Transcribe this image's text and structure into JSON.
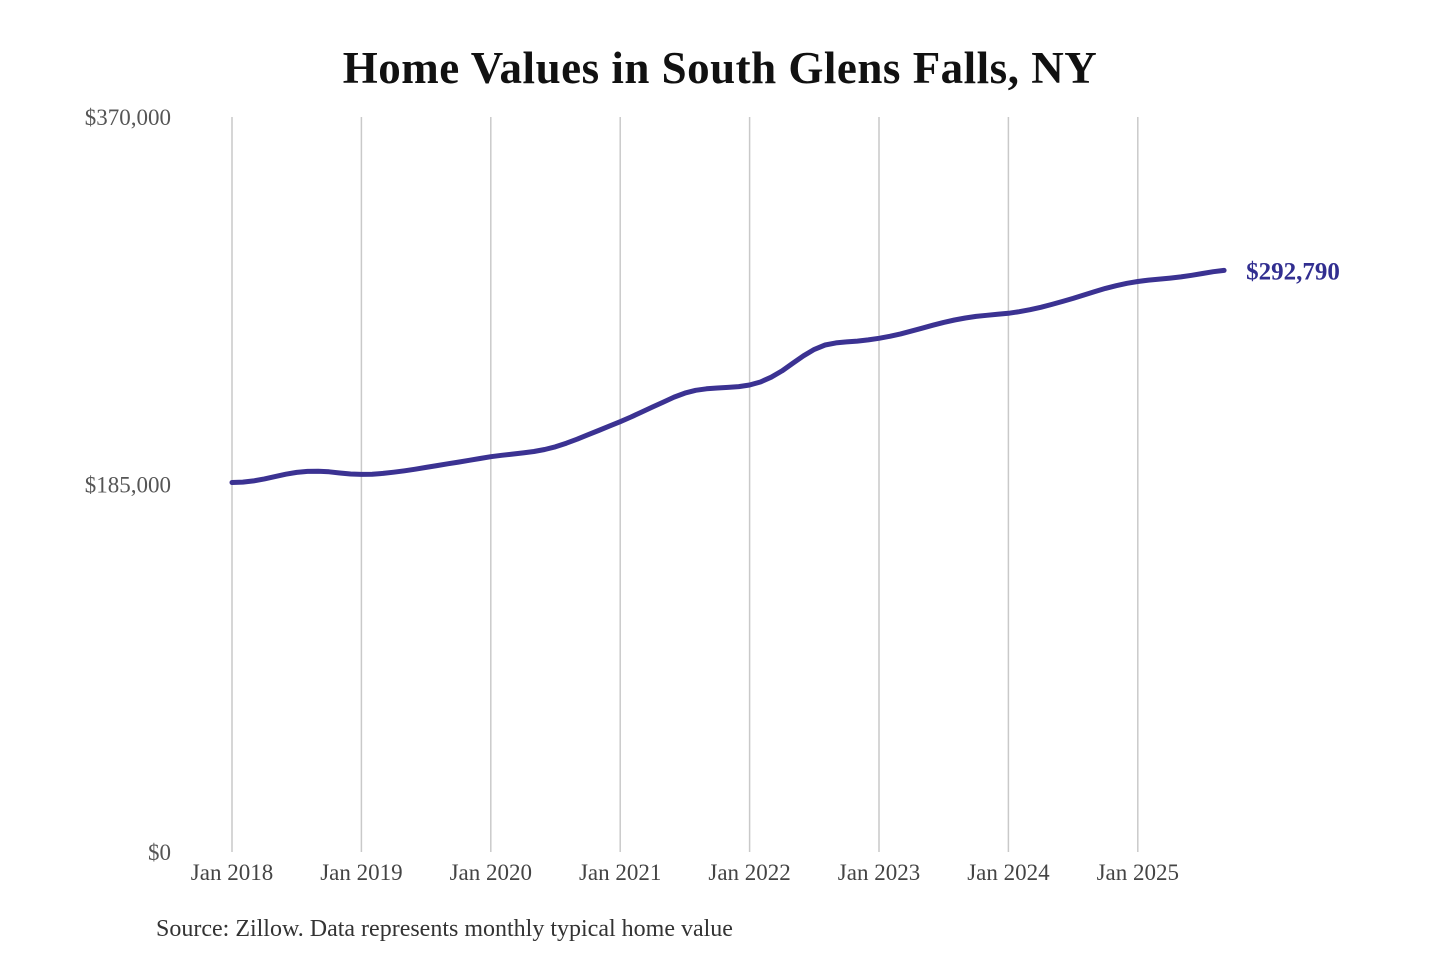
{
  "chart_data": {
    "type": "line",
    "title": "Home Values in South Glens Falls, NY",
    "source_note": "Source: Zillow. Data represents monthly typical home value",
    "end_label": "$292,790",
    "x_tick_labels": [
      "Jan 2018",
      "Jan 2019",
      "Jan 2020",
      "Jan 2021",
      "Jan 2022",
      "Jan 2023",
      "Jan 2024",
      "Jan 2025"
    ],
    "y_tick_labels": [
      "$370,000",
      "$185,000",
      "$0"
    ],
    "y_tick_values": [
      370000,
      185000,
      0
    ],
    "ylim": [
      0,
      370000
    ],
    "grid": "vertical-only",
    "legend": "none",
    "colors": {
      "line": "#3b3292",
      "end_label": "#312e90",
      "grid": "#c9c9c9",
      "y_tick_text": "#555555",
      "x_tick_text": "#444444"
    },
    "series": [
      {
        "name": "Monthly typical home value",
        "start_month": "Jan 2018",
        "frequency": "monthly",
        "final_value": 292790,
        "values": [
          186000,
          186200,
          186800,
          187800,
          189000,
          190200,
          191100,
          191600,
          191700,
          191400,
          190800,
          190300,
          190100,
          190200,
          190600,
          191200,
          191900,
          192700,
          193600,
          194500,
          195400,
          196300,
          197200,
          198100,
          199000,
          199700,
          200300,
          200900,
          201600,
          202600,
          204000,
          205800,
          207800,
          210000,
          212200,
          214400,
          216600,
          219000,
          221500,
          224000,
          226500,
          229000,
          231000,
          232400,
          233200,
          233600,
          233900,
          234300,
          235100,
          236600,
          239000,
          242200,
          246000,
          249800,
          253000,
          255200,
          256300,
          256800,
          257200,
          257800,
          258600,
          259600,
          260800,
          262200,
          263700,
          265200,
          266600,
          267800,
          268800,
          269600,
          270200,
          270700,
          271200,
          272000,
          273000,
          274200,
          275600,
          277100,
          278700,
          280400,
          282100,
          283700,
          285100,
          286300,
          287200,
          287900,
          288400,
          288900,
          289500,
          290300,
          291200,
          292100,
          292790
        ]
      }
    ]
  }
}
